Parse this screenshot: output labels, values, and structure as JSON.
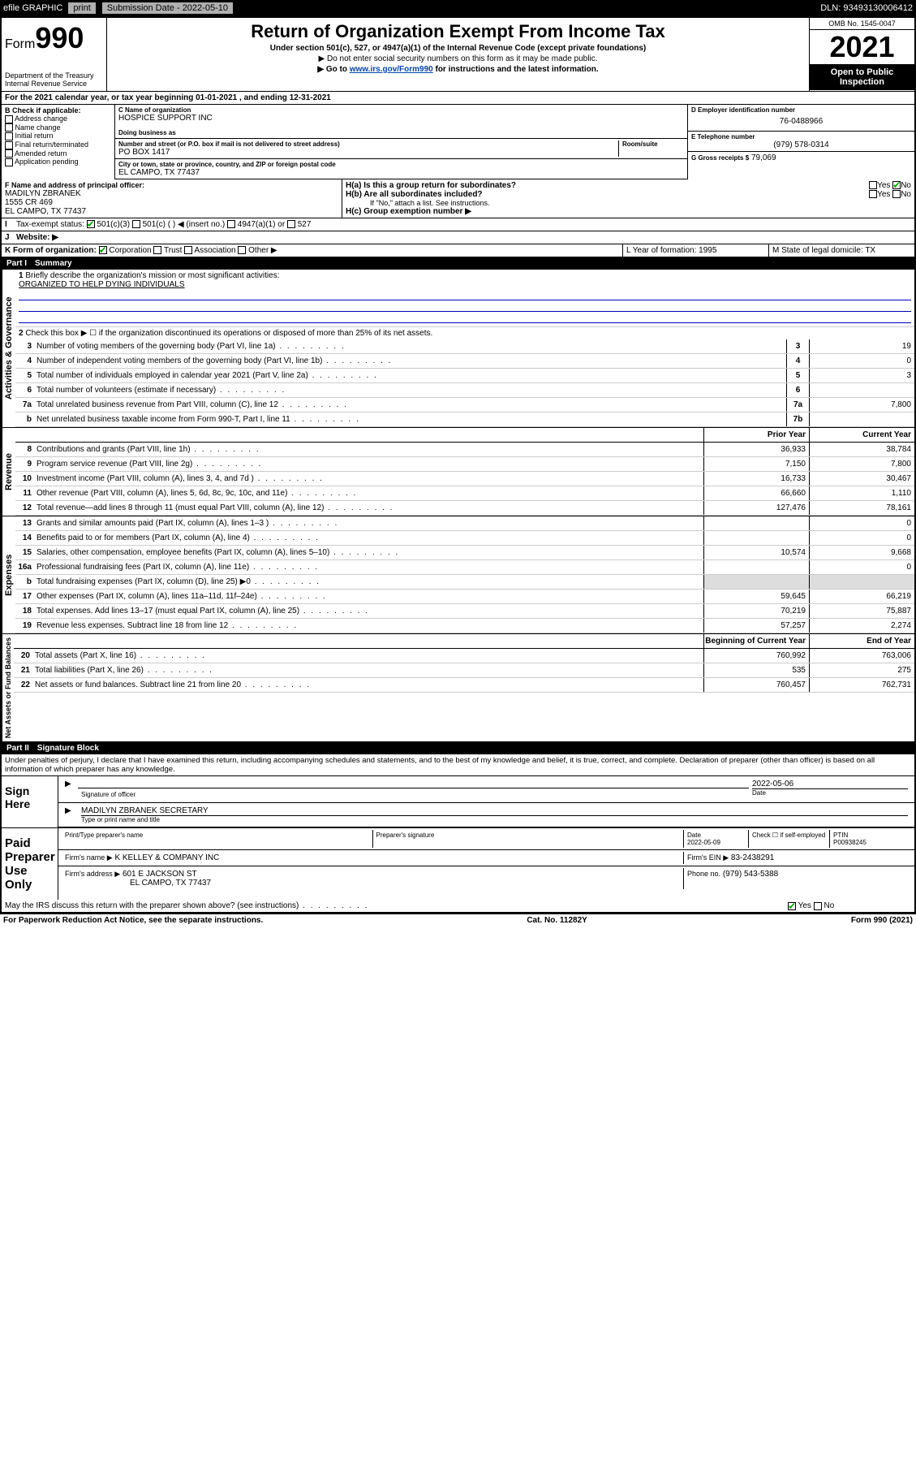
{
  "topbar": {
    "efile": "efile GRAPHIC",
    "print": "print",
    "submission_label": "Submission Date - 2022-05-10",
    "dln_label": "DLN: 93493130006412"
  },
  "header": {
    "form_label": "Form",
    "form_number": "990",
    "dept": "Department of the Treasury",
    "irs": "Internal Revenue Service",
    "title": "Return of Organization Exempt From Income Tax",
    "subtitle": "Under section 501(c), 527, or 4947(a)(1) of the Internal Revenue Code (except private foundations)",
    "note1": "▶ Do not enter social security numbers on this form as it may be made public.",
    "note2_pre": "▶ Go to ",
    "note2_link": "www.irs.gov/Form990",
    "note2_post": " for instructions and the latest information.",
    "omb": "OMB No. 1545-0047",
    "year": "2021",
    "inspection": "Open to Public Inspection"
  },
  "period": {
    "text": "For the 2021 calendar year, or tax year beginning 01-01-2021   , and ending 12-31-2021"
  },
  "section_b": {
    "header": "B Check if applicable:",
    "items": [
      "Address change",
      "Name change",
      "Initial return",
      "Final return/terminated",
      "Amended return",
      "Application pending"
    ]
  },
  "section_c": {
    "name_label": "C Name of organization",
    "name": "HOSPICE SUPPORT INC",
    "dba_label": "Doing business as",
    "street_label": "Number and street (or P.O. box if mail is not delivered to street address)",
    "room_label": "Room/suite",
    "street": "PO BOX 1417",
    "city_label": "City or town, state or province, country, and ZIP or foreign postal code",
    "city": "EL CAMPO, TX  77437"
  },
  "section_d": {
    "label": "D Employer identification number",
    "value": "76-0488966"
  },
  "section_e": {
    "label": "E Telephone number",
    "value": "(979) 578-0314"
  },
  "section_g": {
    "label": "G Gross receipts $",
    "value": "79,069"
  },
  "section_f": {
    "label": "F Name and address of principal officer:",
    "name": "MADILYN ZBRANEK",
    "addr1": "1555 CR 469",
    "addr2": "EL CAMPO, TX  77437"
  },
  "section_h": {
    "ha": "H(a)  Is this a group return for subordinates?",
    "hb": "H(b)  Are all subordinates included?",
    "note": "If \"No,\" attach a list. See instructions.",
    "hc": "H(c)  Group exemption number ▶",
    "yes": "Yes",
    "no": "No"
  },
  "section_i": {
    "label": "Tax-exempt status:",
    "opts": [
      "501(c)(3)",
      "501(c) (  ) ◀ (insert no.)",
      "4947(a)(1) or",
      "527"
    ]
  },
  "section_j": {
    "label": "Website: ▶"
  },
  "section_k": {
    "label": "K Form of organization:",
    "opts": [
      "Corporation",
      "Trust",
      "Association",
      "Other ▶"
    ]
  },
  "section_l": {
    "label": "L Year of formation: 1995"
  },
  "section_m": {
    "label": "M State of legal domicile: TX"
  },
  "part1": {
    "label": "Part I",
    "title": "Summary",
    "line1": "Briefly describe the organization's mission or most significant activities:",
    "mission": "ORGANIZED TO HELP DYING INDIVIDUALS",
    "line2": "Check this box ▶ ☐  if the organization discontinued its operations or disposed of more than 25% of its net assets.",
    "tabs": {
      "gov": "Activities & Governance",
      "rev": "Revenue",
      "exp": "Expenses",
      "net": "Net Assets or Fund Balances"
    },
    "columns": {
      "prior": "Prior Year",
      "current": "Current Year",
      "beg": "Beginning of Current Year",
      "end": "End of Year"
    },
    "rows": [
      {
        "n": "3",
        "t": "Number of voting members of the governing body (Part VI, line 1a)",
        "box": "3",
        "v2": "19"
      },
      {
        "n": "4",
        "t": "Number of independent voting members of the governing body (Part VI, line 1b)",
        "box": "4",
        "v2": "0"
      },
      {
        "n": "5",
        "t": "Total number of individuals employed in calendar year 2021 (Part V, line 2a)",
        "box": "5",
        "v2": "3"
      },
      {
        "n": "6",
        "t": "Total number of volunteers (estimate if necessary)",
        "box": "6",
        "v2": ""
      },
      {
        "n": "7a",
        "t": "Total unrelated business revenue from Part VIII, column (C), line 12",
        "box": "7a",
        "v2": "7,800"
      },
      {
        "n": "b",
        "t": "Net unrelated business taxable income from Form 990-T, Part I, line 11",
        "box": "7b",
        "v2": ""
      }
    ],
    "rev_rows": [
      {
        "n": "8",
        "t": "Contributions and grants (Part VIII, line 1h)",
        "v1": "36,933",
        "v2": "38,784"
      },
      {
        "n": "9",
        "t": "Program service revenue (Part VIII, line 2g)",
        "v1": "7,150",
        "v2": "7,800"
      },
      {
        "n": "10",
        "t": "Investment income (Part VIII, column (A), lines 3, 4, and 7d )",
        "v1": "16,733",
        "v2": "30,467"
      },
      {
        "n": "11",
        "t": "Other revenue (Part VIII, column (A), lines 5, 6d, 8c, 9c, 10c, and 11e)",
        "v1": "66,660",
        "v2": "1,110"
      },
      {
        "n": "12",
        "t": "Total revenue—add lines 8 through 11 (must equal Part VIII, column (A), line 12)",
        "v1": "127,476",
        "v2": "78,161"
      }
    ],
    "exp_rows": [
      {
        "n": "13",
        "t": "Grants and similar amounts paid (Part IX, column (A), lines 1–3 )",
        "v1": "",
        "v2": "0"
      },
      {
        "n": "14",
        "t": "Benefits paid to or for members (Part IX, column (A), line 4)",
        "v1": "",
        "v2": "0"
      },
      {
        "n": "15",
        "t": "Salaries, other compensation, employee benefits (Part IX, column (A), lines 5–10)",
        "v1": "10,574",
        "v2": "9,668"
      },
      {
        "n": "16a",
        "t": "Professional fundraising fees (Part IX, column (A), line 11e)",
        "v1": "",
        "v2": "0"
      },
      {
        "n": "b",
        "t": "Total fundraising expenses (Part IX, column (D), line 25) ▶0",
        "v1": "SHADE",
        "v2": "SHADE"
      },
      {
        "n": "17",
        "t": "Other expenses (Part IX, column (A), lines 11a–11d, 11f–24e)",
        "v1": "59,645",
        "v2": "66,219"
      },
      {
        "n": "18",
        "t": "Total expenses. Add lines 13–17 (must equal Part IX, column (A), line 25)",
        "v1": "70,219",
        "v2": "75,887"
      },
      {
        "n": "19",
        "t": "Revenue less expenses. Subtract line 18 from line 12",
        "v1": "57,257",
        "v2": "2,274"
      }
    ],
    "net_rows": [
      {
        "n": "20",
        "t": "Total assets (Part X, line 16)",
        "v1": "760,992",
        "v2": "763,006"
      },
      {
        "n": "21",
        "t": "Total liabilities (Part X, line 26)",
        "v1": "535",
        "v2": "275"
      },
      {
        "n": "22",
        "t": "Net assets or fund balances. Subtract line 21 from line 20",
        "v1": "760,457",
        "v2": "762,731"
      }
    ]
  },
  "part2": {
    "label": "Part II",
    "title": "Signature Block",
    "penalty": "Under penalties of perjury, I declare that I have examined this return, including accompanying schedules and statements, and to the best of my knowledge and belief, it is true, correct, and complete. Declaration of preparer (other than officer) is based on all information of which preparer has any knowledge."
  },
  "sign": {
    "here": "Sign Here",
    "sig_label": "Signature of officer",
    "date": "2022-05-06",
    "date_label": "Date",
    "name": "MADILYN ZBRANEK SECRETARY",
    "name_label": "Type or print name and title"
  },
  "preparer": {
    "title": "Paid Preparer Use Only",
    "headers": [
      "Print/Type preparer's name",
      "Preparer's signature",
      "Date",
      "",
      "PTIN"
    ],
    "date": "2022-05-09",
    "check_label": "Check ☐ if self-employed",
    "ptin": "P00938245",
    "firm_name_label": "Firm's name    ▶",
    "firm_name": "K KELLEY & COMPANY INC",
    "firm_ein_label": "Firm's EIN ▶",
    "firm_ein": "83-2438291",
    "firm_addr_label": "Firm's address ▶",
    "firm_addr": "601 E JACKSON ST",
    "firm_city": "EL CAMPO, TX  77437",
    "phone_label": "Phone no.",
    "phone": "(979) 543-5388"
  },
  "bottom": {
    "discuss": "May the IRS discuss this return with the preparer shown above? (see instructions)",
    "yes": "Yes",
    "no": "No",
    "paperwork": "For Paperwork Reduction Act Notice, see the separate instructions.",
    "cat": "Cat. No. 11282Y",
    "form": "Form 990 (2021)"
  }
}
